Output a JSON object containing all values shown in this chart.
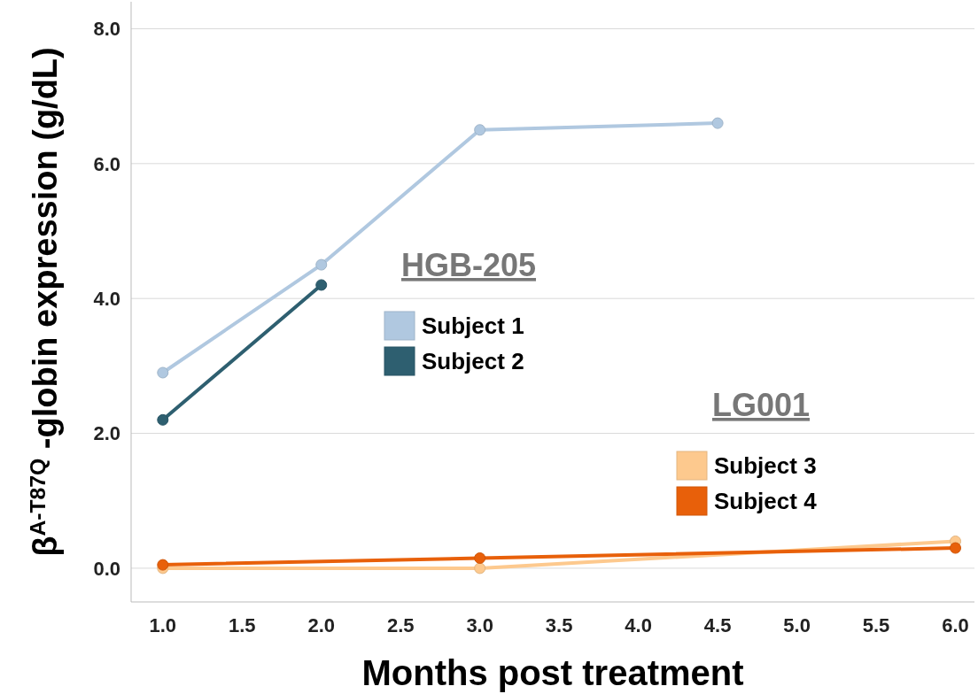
{
  "chart_data": {
    "type": "line",
    "xlabel": "Months post treatment",
    "ylabel": "β$^{A-T87Q}$ -globin expression (g/dL)",
    "xlim": [
      0.8,
      6.12
    ],
    "xticks": [
      {
        "value": 1,
        "label": "1.0"
      },
      {
        "value": 1.5,
        "label": "1.5"
      },
      {
        "value": 2,
        "label": "2.0"
      },
      {
        "value": 2.5,
        "label": "2.5"
      },
      {
        "value": 3,
        "label": "3.0"
      },
      {
        "value": 3.5,
        "label": "3.5"
      },
      {
        "value": 4,
        "label": "4.0"
      },
      {
        "value": 4.5,
        "label": "4.5"
      },
      {
        "value": 5,
        "label": "5.0"
      },
      {
        "value": 5.5,
        "label": "5.5"
      },
      {
        "value": 6,
        "label": "6.0"
      }
    ],
    "ylim": [
      -0.5,
      8.4
    ],
    "yticks": [
      {
        "value": 0,
        "label": "0.0"
      },
      {
        "value": 2,
        "label": "2.0"
      },
      {
        "value": 4,
        "label": "4.0"
      },
      {
        "value": 6,
        "label": "6.0"
      },
      {
        "value": 8,
        "label": "8.0"
      }
    ],
    "grid": "y",
    "legend": "center",
    "marker": "circle",
    "line_style": "solid",
    "annotations": [
      "HGB-205",
      "LG001"
    ],
    "series": [
      {
        "name": "Subject 1",
        "color": "#b0c8e0",
        "x": [
          1,
          2,
          3,
          4.5
        ],
        "values": [
          2.9,
          4.5,
          6.5,
          6.6
        ]
      },
      {
        "name": "Subject 2",
        "color": "#2e5f70",
        "x": [
          1,
          2
        ],
        "values": [
          2.2,
          4.2
        ]
      },
      {
        "name": "Subject 3",
        "color": "#fdc98e",
        "x": [
          1,
          3,
          6
        ],
        "values": [
          0.0,
          0.0,
          0.4
        ]
      },
      {
        "name": "Subject 4",
        "color": "#e8600a",
        "x": [
          1,
          3,
          6
        ],
        "values": [
          0.05,
          0.15,
          0.3
        ]
      }
    ]
  }
}
